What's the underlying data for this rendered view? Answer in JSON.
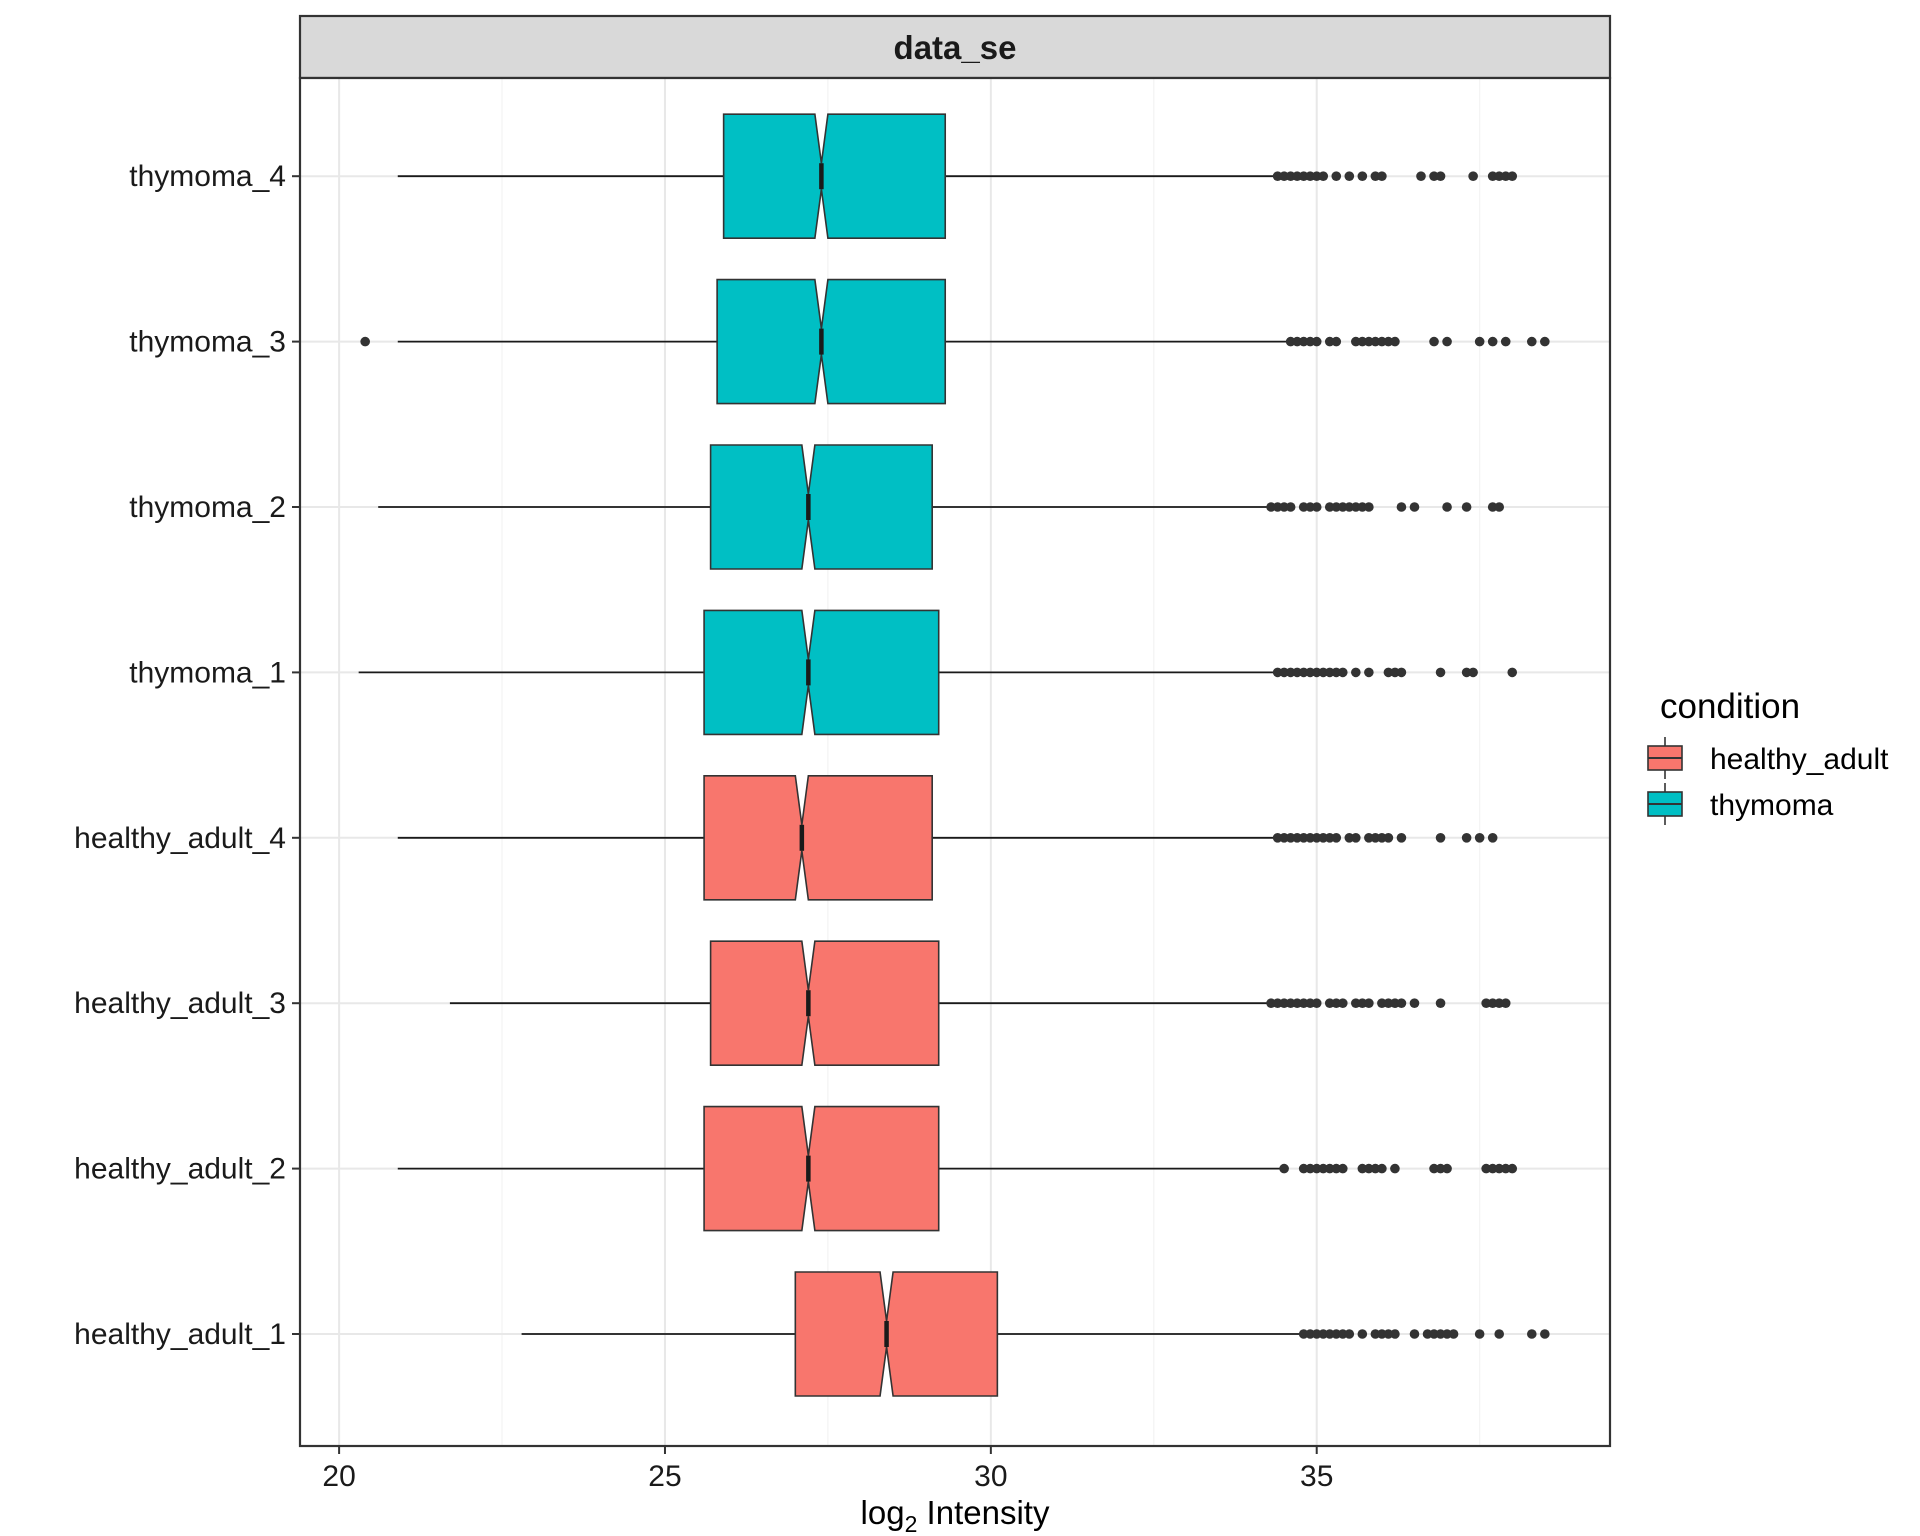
{
  "chart_data": {
    "type": "boxplot",
    "facet": "data_se",
    "xlabel": "log",
    "xlabel_subscript": "2",
    "xlabel_suffix": " Intensity",
    "xlim": [
      19.4,
      39.5
    ],
    "xticks": [
      20,
      25,
      30,
      35
    ],
    "xtick_labels": [
      "20",
      "25",
      "30",
      "35"
    ],
    "grid": true,
    "orientation": "horizontal",
    "notched": true,
    "legend": {
      "title": "condition",
      "position": "right",
      "entries": [
        {
          "label": "healthy_adult",
          "color": "#F8766D"
        },
        {
          "label": "thymoma",
          "color": "#00BFC4"
        }
      ]
    },
    "categories": [
      "healthy_adult_1",
      "healthy_adult_2",
      "healthy_adult_3",
      "healthy_adult_4",
      "thymoma_1",
      "thymoma_2",
      "thymoma_3",
      "thymoma_4"
    ],
    "boxes": [
      {
        "label": "healthy_adult_1",
        "condition": "healthy_adult",
        "whisker_low": 22.8,
        "q1": 27.0,
        "median": 28.4,
        "notch_low": 28.3,
        "notch_high": 28.5,
        "q3": 30.1,
        "whisker_high": 34.8,
        "outliers": [
          34.8,
          34.9,
          35.0,
          35.1,
          35.2,
          35.3,
          35.4,
          35.5,
          35.7,
          35.9,
          36.0,
          36.1,
          36.2,
          36.5,
          36.7,
          36.8,
          36.9,
          37.0,
          37.1,
          37.5,
          37.8,
          38.3,
          38.5
        ]
      },
      {
        "label": "healthy_adult_2",
        "condition": "healthy_adult",
        "whisker_low": 20.9,
        "q1": 25.6,
        "median": 27.2,
        "notch_low": 27.1,
        "notch_high": 27.3,
        "q3": 29.2,
        "whisker_high": 34.5,
        "outliers": [
          34.5,
          34.8,
          34.9,
          35.0,
          35.1,
          35.2,
          35.3,
          35.4,
          35.7,
          35.8,
          35.9,
          36.0,
          36.2,
          36.8,
          36.9,
          37.0,
          37.6,
          37.7,
          37.8,
          37.9,
          38.0
        ]
      },
      {
        "label": "healthy_adult_3",
        "condition": "healthy_adult",
        "whisker_low": 21.7,
        "q1": 25.7,
        "median": 27.2,
        "notch_low": 27.1,
        "notch_high": 27.3,
        "q3": 29.2,
        "whisker_high": 34.3,
        "outliers": [
          34.3,
          34.4,
          34.5,
          34.6,
          34.7,
          34.8,
          34.9,
          35.0,
          35.2,
          35.3,
          35.4,
          35.6,
          35.7,
          35.8,
          36.0,
          36.1,
          36.2,
          36.3,
          36.5,
          36.9,
          37.6,
          37.7,
          37.8,
          37.9
        ]
      },
      {
        "label": "healthy_adult_4",
        "condition": "healthy_adult",
        "whisker_low": 20.9,
        "q1": 25.6,
        "median": 27.1,
        "notch_low": 27.0,
        "notch_high": 27.2,
        "q3": 29.1,
        "whisker_high": 34.4,
        "outliers": [
          34.4,
          34.5,
          34.6,
          34.7,
          34.8,
          34.9,
          35.0,
          35.1,
          35.2,
          35.3,
          35.5,
          35.6,
          35.8,
          35.9,
          36.0,
          36.1,
          36.3,
          36.9,
          37.3,
          37.5,
          37.7
        ]
      },
      {
        "label": "thymoma_1",
        "condition": "thymoma",
        "whisker_low": 20.3,
        "q1": 25.6,
        "median": 27.2,
        "notch_low": 27.1,
        "notch_high": 27.3,
        "q3": 29.2,
        "whisker_high": 34.4,
        "outliers": [
          34.4,
          34.5,
          34.6,
          34.7,
          34.8,
          34.9,
          35.0,
          35.1,
          35.2,
          35.3,
          35.4,
          35.6,
          35.8,
          36.1,
          36.2,
          36.3,
          36.9,
          37.3,
          37.4,
          38.0
        ]
      },
      {
        "label": "thymoma_2",
        "condition": "thymoma",
        "whisker_low": 20.6,
        "q1": 25.7,
        "median": 27.2,
        "notch_low": 27.1,
        "notch_high": 27.3,
        "q3": 29.1,
        "whisker_high": 34.3,
        "outliers": [
          34.3,
          34.4,
          34.5,
          34.6,
          34.8,
          34.9,
          35.0,
          35.2,
          35.3,
          35.4,
          35.5,
          35.6,
          35.7,
          35.8,
          36.3,
          36.5,
          37.0,
          37.3,
          37.7,
          37.8
        ]
      },
      {
        "label": "thymoma_3",
        "condition": "thymoma",
        "whisker_low": 20.9,
        "q1": 25.8,
        "median": 27.4,
        "notch_low": 27.3,
        "notch_high": 27.5,
        "q3": 29.3,
        "whisker_high": 34.6,
        "outliers": [
          20.4,
          34.6,
          34.7,
          34.8,
          34.9,
          35.0,
          35.2,
          35.3,
          35.6,
          35.7,
          35.8,
          35.9,
          36.0,
          36.1,
          36.2,
          36.8,
          37.0,
          37.5,
          37.7,
          37.9,
          38.3,
          38.5
        ]
      },
      {
        "label": "thymoma_4",
        "condition": "thymoma",
        "whisker_low": 20.9,
        "q1": 25.9,
        "median": 27.4,
        "notch_low": 27.3,
        "notch_high": 27.5,
        "q3": 29.3,
        "whisker_high": 34.4,
        "outliers": [
          34.4,
          34.5,
          34.6,
          34.7,
          34.8,
          34.9,
          35.0,
          35.1,
          35.3,
          35.5,
          35.7,
          35.9,
          36.0,
          36.6,
          36.8,
          36.9,
          37.4,
          37.7,
          37.8,
          37.9,
          38.0
        ]
      }
    ]
  }
}
